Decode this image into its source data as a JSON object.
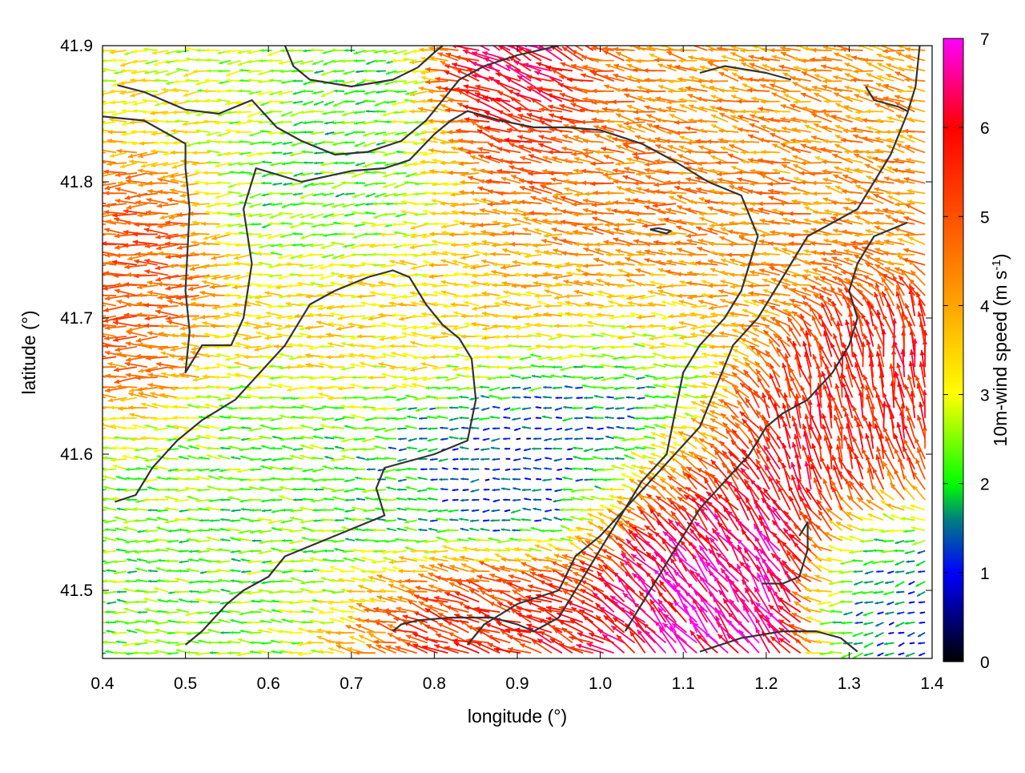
{
  "chart_data": {
    "type": "vector-field",
    "title": "",
    "xlabel": "longitude (°)",
    "ylabel": "latitude (°)",
    "xlim": [
      0.4,
      1.4
    ],
    "ylim": [
      41.45,
      41.9
    ],
    "x_ticks": [
      "0.4",
      "0.5",
      "0.6",
      "0.7",
      "0.8",
      "0.9",
      "1.0",
      "1.1",
      "1.2",
      "1.3",
      "1.4"
    ],
    "y_ticks": [
      "41.5",
      "41.6",
      "41.7",
      "41.8",
      "41.9"
    ],
    "grid": false,
    "colorbar": {
      "label": "10m-wind speed (m s-1)",
      "label_main": "10m-wind speed (m s",
      "label_sup": "-1",
      "label_close": ")",
      "range": [
        0,
        7
      ],
      "ticks": [
        "0",
        "1",
        "2",
        "3",
        "4",
        "5",
        "6",
        "7"
      ],
      "colormap": [
        {
          "v": 0,
          "color": "#000000"
        },
        {
          "v": 1,
          "color": "#0000ff"
        },
        {
          "v": 1.6,
          "color": "#008080"
        },
        {
          "v": 2,
          "color": "#00ff00"
        },
        {
          "v": 3,
          "color": "#ffff00"
        },
        {
          "v": 4,
          "color": "#ffa500"
        },
        {
          "v": 5,
          "color": "#ff5000"
        },
        {
          "v": 6,
          "color": "#ff0000"
        },
        {
          "v": 7,
          "color": "#ff00ff"
        }
      ]
    },
    "contour_color": "#333333",
    "contours": [
      [
        [
          0.4,
          41.848
        ],
        [
          0.45,
          41.845
        ],
        [
          0.5,
          41.828
        ],
        [
          0.5,
          41.81
        ],
        [
          0.505,
          41.78
        ],
        [
          0.5,
          41.72
        ],
        [
          0.505,
          41.69
        ],
        [
          0.5,
          41.66
        ],
        [
          0.52,
          41.68
        ],
        [
          0.555,
          41.68
        ],
        [
          0.57,
          41.7
        ],
        [
          0.58,
          41.74
        ],
        [
          0.57,
          41.78
        ],
        [
          0.585,
          41.81
        ],
        [
          0.64,
          41.8
        ],
        [
          0.7,
          41.808
        ],
        [
          0.74,
          41.81
        ],
        [
          0.77,
          41.816
        ],
        [
          0.8,
          41.835
        ],
        [
          0.82,
          41.845
        ],
        [
          0.84,
          41.852
        ],
        [
          0.88,
          41.845
        ],
        [
          0.92,
          41.84
        ],
        [
          0.96,
          41.84
        ],
        [
          1.0,
          41.838
        ],
        [
          1.05,
          41.828
        ],
        [
          1.09,
          41.815
        ],
        [
          1.13,
          41.8
        ],
        [
          1.17,
          41.79
        ],
        [
          1.18,
          41.775
        ],
        [
          1.19,
          41.76
        ],
        [
          1.18,
          41.74
        ],
        [
          1.17,
          41.72
        ],
        [
          1.15,
          41.7
        ],
        [
          1.12,
          41.68
        ],
        [
          1.1,
          41.66
        ],
        [
          1.09,
          41.63
        ],
        [
          1.08,
          41.6
        ],
        [
          1.05,
          41.58
        ],
        [
          1.03,
          41.56
        ],
        [
          1.0,
          41.54
        ],
        [
          0.97,
          41.525
        ],
        [
          0.95,
          41.5
        ],
        [
          0.9,
          41.49
        ],
        [
          0.86,
          41.475
        ],
        [
          0.84,
          41.46
        ]
      ],
      [
        [
          0.418,
          41.871
        ],
        [
          0.45,
          41.866
        ],
        [
          0.5,
          41.853
        ],
        [
          0.54,
          41.85
        ],
        [
          0.58,
          41.86
        ],
        [
          0.61,
          41.84
        ],
        [
          0.64,
          41.83
        ],
        [
          0.68,
          41.82
        ],
        [
          0.72,
          41.822
        ],
        [
          0.76,
          41.83
        ],
        [
          0.79,
          41.845
        ],
        [
          0.81,
          41.86
        ],
        [
          0.83,
          41.875
        ],
        [
          0.86,
          41.885
        ],
        [
          0.9,
          41.893
        ],
        [
          0.95,
          41.9
        ]
      ],
      [
        [
          0.62,
          41.9
        ],
        [
          0.63,
          41.885
        ],
        [
          0.65,
          41.875
        ],
        [
          0.7,
          41.87
        ],
        [
          0.75,
          41.875
        ],
        [
          0.78,
          41.884
        ],
        [
          0.8,
          41.895
        ],
        [
          0.81,
          41.9
        ]
      ],
      [
        [
          0.415,
          41.565
        ],
        [
          0.44,
          41.57
        ],
        [
          0.46,
          41.59
        ],
        [
          0.49,
          41.61
        ],
        [
          0.52,
          41.625
        ],
        [
          0.56,
          41.64
        ],
        [
          0.59,
          41.66
        ],
        [
          0.62,
          41.68
        ],
        [
          0.65,
          41.71
        ],
        [
          0.68,
          41.72
        ],
        [
          0.72,
          41.73
        ],
        [
          0.75,
          41.735
        ],
        [
          0.77,
          41.73
        ],
        [
          0.79,
          41.71
        ],
        [
          0.81,
          41.695
        ],
        [
          0.83,
          41.685
        ],
        [
          0.845,
          41.67
        ],
        [
          0.85,
          41.64
        ],
        [
          0.84,
          41.61
        ],
        [
          0.8,
          41.6
        ],
        [
          0.77,
          41.595
        ],
        [
          0.74,
          41.59
        ],
        [
          0.73,
          41.575
        ],
        [
          0.74,
          41.555
        ],
        [
          0.7,
          41.545
        ],
        [
          0.68,
          41.54
        ],
        [
          0.66,
          41.535
        ],
        [
          0.64,
          41.53
        ],
        [
          0.62,
          41.525
        ],
        [
          0.6,
          41.51
        ],
        [
          0.57,
          41.5
        ],
        [
          0.55,
          41.49
        ],
        [
          0.52,
          41.47
        ],
        [
          0.5,
          41.46
        ]
      ],
      [
        [
          0.75,
          41.47
        ],
        [
          0.76,
          41.475
        ],
        [
          0.78,
          41.478
        ],
        [
          0.82,
          41.48
        ],
        [
          0.87,
          41.48
        ],
        [
          0.9,
          41.475
        ],
        [
          0.92,
          41.47
        ],
        [
          0.95,
          41.48
        ],
        [
          0.97,
          41.5
        ],
        [
          0.99,
          41.52
        ],
        [
          1.01,
          41.54
        ],
        [
          1.03,
          41.56
        ],
        [
          1.06,
          41.58
        ],
        [
          1.09,
          41.6
        ],
        [
          1.12,
          41.62
        ],
        [
          1.14,
          41.65
        ],
        [
          1.16,
          41.68
        ],
        [
          1.19,
          41.7
        ],
        [
          1.21,
          41.72
        ],
        [
          1.23,
          41.74
        ],
        [
          1.25,
          41.76
        ],
        [
          1.28,
          41.77
        ],
        [
          1.31,
          41.78
        ],
        [
          1.33,
          41.8
        ],
        [
          1.35,
          41.82
        ],
        [
          1.37,
          41.85
        ],
        [
          1.38,
          41.87
        ],
        [
          1.385,
          41.9
        ]
      ],
      [
        [
          1.03,
          41.47
        ],
        [
          1.06,
          41.5
        ],
        [
          1.09,
          41.53
        ],
        [
          1.12,
          41.56
        ],
        [
          1.15,
          41.58
        ],
        [
          1.18,
          41.6
        ],
        [
          1.2,
          41.62
        ],
        [
          1.22,
          41.63
        ],
        [
          1.25,
          41.64
        ],
        [
          1.28,
          41.66
        ],
        [
          1.3,
          41.68
        ],
        [
          1.31,
          41.7
        ],
        [
          1.3,
          41.72
        ],
        [
          1.31,
          41.74
        ],
        [
          1.33,
          41.76
        ],
        [
          1.37,
          41.77
        ]
      ],
      [
        [
          1.12,
          41.455
        ],
        [
          1.17,
          41.465
        ],
        [
          1.22,
          41.47
        ],
        [
          1.26,
          41.47
        ],
        [
          1.29,
          41.465
        ],
        [
          1.31,
          41.455
        ]
      ],
      [
        [
          1.195,
          41.505
        ],
        [
          1.22,
          41.505
        ],
        [
          1.24,
          41.51
        ],
        [
          1.25,
          41.53
        ],
        [
          1.25,
          41.55
        ],
        [
          1.24,
          41.54
        ]
      ],
      [
        [
          1.06,
          41.765
        ],
        [
          1.08,
          41.762
        ],
        [
          1.085,
          41.764
        ],
        [
          1.07,
          41.766
        ],
        [
          1.06,
          41.765
        ]
      ],
      [
        [
          1.32,
          41.87
        ],
        [
          1.33,
          41.86
        ],
        [
          1.36,
          41.855
        ],
        [
          1.37,
          41.852
        ]
      ],
      [
        [
          1.12,
          41.88
        ],
        [
          1.15,
          41.885
        ],
        [
          1.2,
          41.88
        ],
        [
          1.23,
          41.875
        ]
      ]
    ],
    "wind_regions": [
      {
        "name": "west-land",
        "lon": [
          0.4,
          0.5
        ],
        "lat": [
          41.66,
          41.82
        ],
        "speed": 5.0,
        "dir_deg": 180
      },
      {
        "name": "north-coast-yellow",
        "lon": [
          0.4,
          0.62
        ],
        "lat": [
          41.82,
          41.9
        ],
        "speed": 2.9,
        "dir_deg": 185
      },
      {
        "name": "north-valley-green",
        "lon": [
          0.6,
          0.85
        ],
        "lat": [
          41.76,
          41.89
        ],
        "speed": 2.0,
        "dir_deg": 190
      },
      {
        "name": "upper-magenta",
        "lon": [
          0.83,
          0.94
        ],
        "lat": [
          41.82,
          41.9
        ],
        "speed": 6.8,
        "dir_deg": 150
      },
      {
        "name": "mid-orange-band",
        "lon": [
          0.82,
          1.2
        ],
        "lat": [
          41.74,
          41.84
        ],
        "speed": 4.6,
        "dir_deg": 172
      },
      {
        "name": "northeast-orange",
        "lon": [
          1.1,
          1.4
        ],
        "lat": [
          41.8,
          41.9
        ],
        "speed": 4.2,
        "dir_deg": 168
      },
      {
        "name": "central-yellow",
        "lon": [
          0.6,
          1.1
        ],
        "lat": [
          41.66,
          41.74
        ],
        "speed": 3.5,
        "dir_deg": 178
      },
      {
        "name": "calm-basin",
        "lon": [
          0.82,
          1.12
        ],
        "lat": [
          41.55,
          41.66
        ],
        "speed": 0.9,
        "dir_deg": 185
      },
      {
        "name": "southwest-green",
        "lon": [
          0.4,
          0.75
        ],
        "lat": [
          41.46,
          41.62
        ],
        "speed": 2.3,
        "dir_deg": 178
      },
      {
        "name": "southeast-magenta",
        "lon": [
          1.02,
          1.24
        ],
        "lat": [
          41.47,
          41.6
        ],
        "speed": 6.8,
        "dir_deg": 125
      },
      {
        "name": "east-red",
        "lon": [
          1.22,
          1.4
        ],
        "lat": [
          41.56,
          41.66
        ],
        "speed": 5.8,
        "dir_deg": 100
      },
      {
        "name": "south-red",
        "lon": [
          0.74,
          1.0
        ],
        "lat": [
          41.45,
          41.5
        ],
        "speed": 5.6,
        "dir_deg": 160
      },
      {
        "name": "far-east-calm",
        "lon": [
          1.3,
          1.4
        ],
        "lat": [
          41.46,
          41.55
        ],
        "speed": 1.2,
        "dir_deg": 200
      }
    ]
  }
}
